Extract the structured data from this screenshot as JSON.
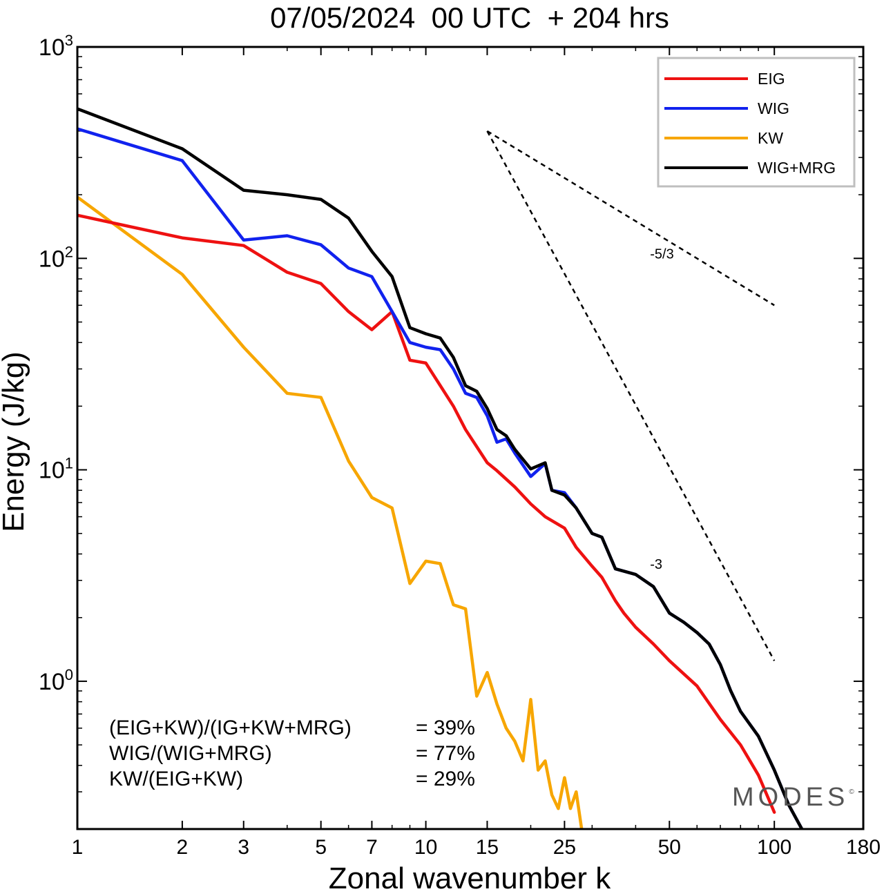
{
  "chart_data": {
    "type": "line",
    "title": "07/05/2024  00 UTC  + 204 hrs",
    "xlabel": "Zonal wavenumber k",
    "ylabel": "Energy (J/kg)",
    "x_scale": "log",
    "y_scale": "log",
    "xlim": [
      1,
      180
    ],
    "ylim": [
      0.2,
      1000
    ],
    "x_ticks": [
      1,
      2,
      3,
      5,
      7,
      10,
      15,
      25,
      50,
      100,
      180
    ],
    "x_tick_labels": [
      "1",
      "2",
      "3",
      "5",
      "7",
      "10",
      "15",
      "25",
      "50",
      "100",
      "180"
    ],
    "y_ticks": [
      1,
      10,
      100,
      1000
    ],
    "y_tick_labels": [
      {
        "base": "10",
        "exp": "0"
      },
      {
        "base": "10",
        "exp": "1"
      },
      {
        "base": "10",
        "exp": "2"
      },
      {
        "base": "10",
        "exp": "3"
      }
    ],
    "legend_position": "top-right",
    "series": [
      {
        "name": "EIG",
        "color": "#ee1111",
        "x": [
          1,
          2,
          3,
          4,
          5,
          6,
          7,
          8,
          9,
          10,
          12,
          13,
          15,
          16,
          18,
          20,
          22,
          25,
          27,
          30,
          32,
          35,
          37,
          40,
          45,
          50,
          60,
          70,
          80,
          90,
          100
        ],
        "y": [
          160,
          125,
          115,
          86,
          76,
          56,
          46,
          56,
          33,
          32,
          20,
          15.5,
          10.8,
          9.9,
          8.3,
          6.9,
          6.0,
          5.3,
          4.3,
          3.5,
          3.1,
          2.4,
          2.1,
          1.8,
          1.5,
          1.25,
          0.95,
          0.66,
          0.5,
          0.36,
          0.24
        ]
      },
      {
        "name": "WIG",
        "color": "#1122ee",
        "x": [
          1,
          2,
          3,
          4,
          5,
          6,
          7,
          8,
          9,
          10,
          11,
          12,
          13,
          14,
          15,
          16,
          17,
          18,
          20,
          22,
          23,
          25,
          27,
          30,
          32,
          35,
          40,
          45,
          50,
          55,
          60,
          65,
          70,
          75,
          80,
          90,
          100,
          110,
          120
        ],
        "y": [
          410,
          290,
          122,
          128,
          116,
          90,
          82,
          56,
          40,
          38,
          37,
          30,
          23,
          22,
          18,
          13.5,
          14,
          12,
          9.3,
          10.7,
          8,
          7.8,
          6.6,
          5,
          4.8,
          3.4,
          3.2,
          2.8,
          2.1,
          1.9,
          1.7,
          1.5,
          1.2,
          0.9,
          0.72,
          0.55,
          0.38,
          0.26,
          0.2
        ]
      },
      {
        "name": "KW",
        "color": "#f7a600",
        "x": [
          1,
          2,
          3,
          4,
          5,
          6,
          7,
          8,
          9,
          10,
          11,
          12,
          13,
          14,
          15,
          16,
          17,
          18,
          19,
          20,
          21,
          22,
          23,
          24,
          25,
          26,
          27,
          28
        ],
        "y": [
          195,
          84,
          38,
          23,
          22,
          11,
          7.4,
          6.6,
          2.9,
          3.7,
          3.6,
          2.3,
          2.2,
          0.85,
          1.1,
          0.78,
          0.6,
          0.52,
          0.42,
          0.82,
          0.38,
          0.42,
          0.29,
          0.25,
          0.35,
          0.25,
          0.3,
          0.2
        ]
      },
      {
        "name": "WIG+MRG",
        "color": "#000000",
        "x": [
          1,
          2,
          3,
          4,
          5,
          6,
          7,
          8,
          9,
          10,
          11,
          12,
          13,
          14,
          15,
          16,
          17,
          18,
          20,
          22,
          23,
          25,
          27,
          30,
          32,
          35,
          40,
          45,
          50,
          55,
          60,
          65,
          70,
          75,
          80,
          90,
          100,
          110,
          120
        ],
        "y": [
          510,
          330,
          210,
          200,
          190,
          155,
          108,
          82,
          47,
          44,
          42,
          34,
          25,
          23.5,
          19.5,
          15.5,
          14.5,
          12.5,
          10.1,
          10.8,
          8,
          7.6,
          6.6,
          5,
          4.8,
          3.4,
          3.2,
          2.8,
          2.1,
          1.9,
          1.7,
          1.5,
          1.2,
          0.9,
          0.72,
          0.55,
          0.38,
          0.26,
          0.2
        ]
      }
    ],
    "reference_lines": [
      {
        "label": "-5/3",
        "x": [
          15,
          100
        ],
        "y": [
          400,
          60
        ]
      },
      {
        "label": "-3",
        "x": [
          15,
          100
        ],
        "y": [
          400,
          1.25
        ]
      }
    ],
    "annotations": {
      "ratios": [
        {
          "name": "(EIG+KW)/(IG+KW+MRG)",
          "value": "= 39%"
        },
        {
          "name": "WIG/(WIG+MRG)",
          "value": "= 77%"
        },
        {
          "name": "KW/(EIG+KW)",
          "value": "= 29%"
        }
      ],
      "watermark": "MODES",
      "watermark_mark": "©"
    }
  }
}
